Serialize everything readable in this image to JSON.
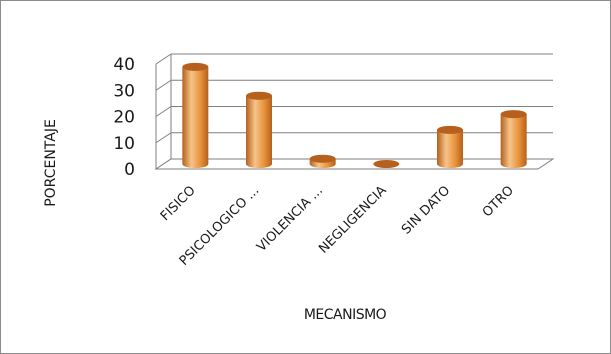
{
  "chart_data": {
    "type": "bar",
    "style": "3d-cylinder",
    "categories": [
      "FISICO",
      "PSICOLOGICO ...",
      "VIOLENCIA ...",
      "NEGLIGENCIA",
      "SIN DATO",
      "OTRO"
    ],
    "values": [
      37,
      26,
      2,
      0,
      13,
      19
    ],
    "xlabel": "MECANISMO",
    "ylabel": "PORCENTAJE",
    "ylim": [
      0,
      40
    ],
    "yticks": [
      0,
      10,
      20,
      30,
      40
    ],
    "grid": true,
    "legend": "none",
    "colors": {
      "bar": "#e8923a",
      "bar_dark": "#b5601c",
      "bar_light": "#f6c48a",
      "grid": "#7f7f7f",
      "floor": "#ffffff"
    }
  }
}
